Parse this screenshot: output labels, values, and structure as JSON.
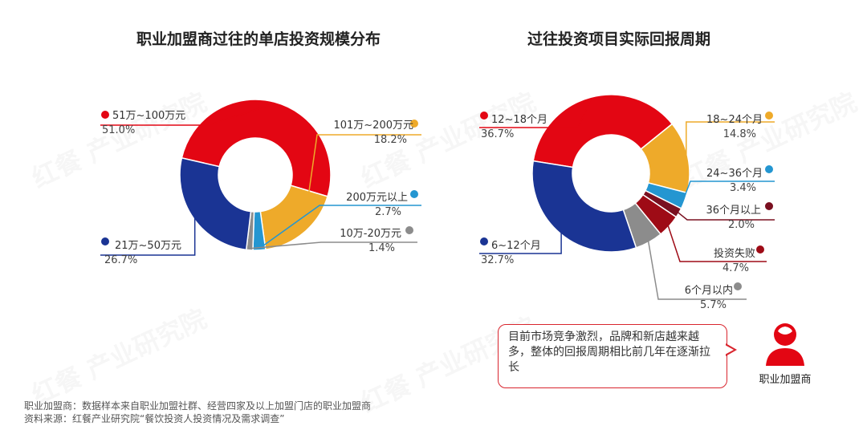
{
  "titles": {
    "left": "职业加盟商过往的单店投资规模分布",
    "right": "过往投资项目实际回报周期"
  },
  "chart_data": [
    {
      "type": "pie",
      "title": "职业加盟商过往的单店投资规模分布",
      "donut": true,
      "slices": [
        {
          "label": "51万~100万元",
          "value": 51.0,
          "pct_text": "51.0%",
          "color": "#e30613"
        },
        {
          "label": "101万~200万元",
          "value": 18.2,
          "pct_text": "18.2%",
          "color": "#eeaa2a"
        },
        {
          "label": "200万元以上",
          "value": 2.7,
          "pct_text": "2.7%",
          "color": "#2496d1"
        },
        {
          "label": "10万-20万元",
          "value": 1.4,
          "pct_text": "1.4%",
          "color": "#8c8c8c"
        },
        {
          "label": "21万~50万元",
          "value": 26.7,
          "pct_text": "26.7%",
          "color": "#1a3494"
        }
      ]
    },
    {
      "type": "pie",
      "title": "过往投资项目实际回报周期",
      "donut": true,
      "slices": [
        {
          "label": "12~18个月",
          "value": 36.7,
          "pct_text": "36.7%",
          "color": "#e30613"
        },
        {
          "label": "18~24个月",
          "value": 14.8,
          "pct_text": "14.8%",
          "color": "#eeaa2a"
        },
        {
          "label": "24~36个月",
          "value": 3.4,
          "pct_text": "3.4%",
          "color": "#2496d1"
        },
        {
          "label": "36个月以上",
          "value": 2.0,
          "pct_text": "2.0%",
          "color": "#7a1020"
        },
        {
          "label": "投资失败",
          "value": 4.7,
          "pct_text": "4.7%",
          "color": "#9e0b16"
        },
        {
          "label": "6个月以内",
          "value": 5.7,
          "pct_text": "5.7%",
          "color": "#8c8c8c"
        },
        {
          "label": "6~12个月",
          "value": 32.7,
          "pct_text": "32.7%",
          "color": "#1a3494"
        }
      ]
    }
  ],
  "callout": {
    "text": "目前市场竞争激烈，品牌和新店越来越多，整体的回报周期相比前几年在逐渐拉长",
    "person_label": "职业加盟商"
  },
  "watermark": "红餐 产业研究院",
  "footnotes": {
    "line1": "职业加盟商：数据样本来自职业加盟社群、经营四家及以上加盟门店的职业加盟商",
    "line2": "资料来源：红餐产业研究院“餐饮投资人投资情况及需求调查”"
  }
}
